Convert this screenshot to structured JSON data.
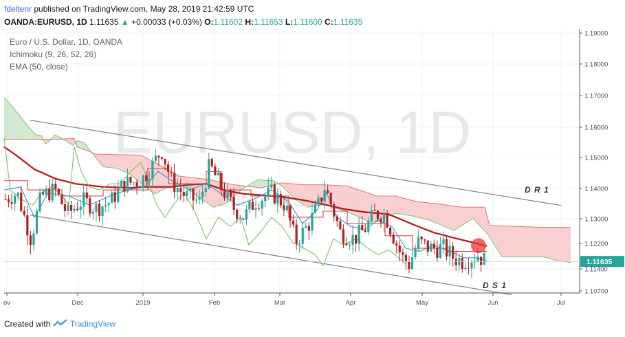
{
  "header": {
    "author": "fdeltenr",
    "published_text": "published on TradingView.com, May 28, 2019 21:42:59 UTC",
    "symbol": "OANDA:EURUSD, 1D",
    "last": "1.11635",
    "change": "+0.00033 (+0.03%)",
    "o_label": "O:",
    "o": "1.11602",
    "h_label": "H:",
    "h": "1.11653",
    "l_label": "L:",
    "l": "1.11600",
    "c_label": "C:",
    "c": "1.11635"
  },
  "overlay": {
    "instrument": "Euro / U.S. Dollar, 1D, OANDA",
    "indicator1": "Ichimoku (9, 26, 52, 26)",
    "indicator2": "EMA (50, close)"
  },
  "watermark": {
    "symbol": "EURUSD, 1D",
    "name": "Euro / U.S. Dollar"
  },
  "annotations": {
    "upper_channel": "D R 1",
    "lower_channel": "D S 1"
  },
  "price_badge": "1.11635",
  "footer": {
    "created_with": "Created with",
    "brand": "TradingView"
  },
  "colors": {
    "bull": "#26a69a",
    "bear": "#b2201d",
    "ema": "#b71c1c",
    "kijun": "#d84040",
    "tenkan": "#3d8fd8",
    "chikou": "#6fbf56",
    "cloud_bull": "#c8e6c9",
    "cloud_bear": "#f8c8c8",
    "channel": "#8a8a8a",
    "badge": "#26a69a",
    "highlight": "#e53935"
  },
  "chart_data": {
    "type": "candlestick",
    "price_axis": [
      "1.19000",
      "1.18000",
      "1.17000",
      "1.16000",
      "1.15000",
      "1.14000",
      "1.13000",
      "1.12200",
      "1.11400",
      "1.10700"
    ],
    "time_axis": [
      "ov",
      "Dec",
      "2019",
      "Feb",
      "Mar",
      "Apr",
      "May",
      "Jun",
      "Jul"
    ],
    "last_price": 1.11635,
    "ylim": [
      1.105,
      1.192
    ],
    "grid": true
  }
}
